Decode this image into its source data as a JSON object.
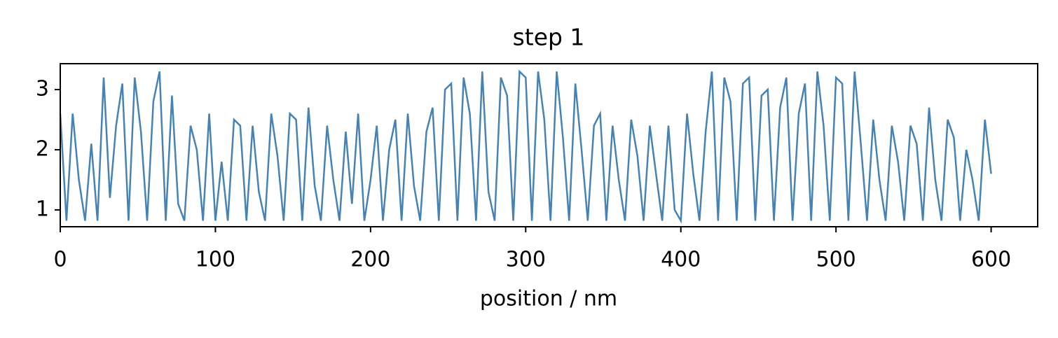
{
  "chart_data": {
    "type": "line",
    "title": "step 1",
    "x_label": "position / nm",
    "x": [
      0,
      4,
      8,
      12,
      16,
      20,
      24,
      28,
      32,
      36,
      40,
      44,
      48,
      52,
      56,
      60,
      64,
      68,
      72,
      76,
      80,
      84,
      88,
      92,
      96,
      100,
      104,
      108,
      112,
      116,
      120,
      124,
      128,
      132,
      136,
      140,
      144,
      148,
      152,
      156,
      160,
      164,
      168,
      172,
      176,
      180,
      184,
      188,
      192,
      196,
      200,
      204,
      208,
      212,
      216,
      220,
      224,
      228,
      232,
      236,
      240,
      244,
      248,
      252,
      256,
      260,
      264,
      268,
      272,
      276,
      280,
      284,
      288,
      292,
      296,
      300,
      304,
      308,
      312,
      316,
      320,
      324,
      328,
      332,
      336,
      340,
      344,
      348,
      352,
      356,
      360,
      364,
      368,
      372,
      376,
      380,
      384,
      388,
      392,
      396,
      400,
      404,
      408,
      412,
      416,
      420,
      424,
      428,
      432,
      436,
      440,
      444,
      448,
      452,
      456,
      460,
      464,
      468,
      472,
      476,
      480,
      484,
      488,
      492,
      496,
      500,
      504,
      508,
      512,
      516,
      520,
      524,
      528,
      532,
      536,
      540,
      544,
      548,
      552,
      556,
      560,
      564,
      568,
      572,
      576,
      580,
      584,
      588,
      592,
      596,
      600
    ],
    "series": [
      {
        "color": "#4682b4",
        "values": [
          2.6,
          0.82,
          2.6,
          1.5,
          0.82,
          2.1,
          0.82,
          3.2,
          1.2,
          2.4,
          3.1,
          0.82,
          3.2,
          2.3,
          0.82,
          2.8,
          3.3,
          0.82,
          2.9,
          1.1,
          0.82,
          2.4,
          2.0,
          0.82,
          2.6,
          0.82,
          1.8,
          0.82,
          2.5,
          2.4,
          0.82,
          2.4,
          1.3,
          0.82,
          2.6,
          1.9,
          0.82,
          2.6,
          2.5,
          0.82,
          2.7,
          1.4,
          0.82,
          2.4,
          1.5,
          0.82,
          2.3,
          1.1,
          2.6,
          0.82,
          1.5,
          2.4,
          0.82,
          2.0,
          2.5,
          0.82,
          2.6,
          1.4,
          0.82,
          2.3,
          2.7,
          0.82,
          3.0,
          3.1,
          0.82,
          3.2,
          2.6,
          0.82,
          3.3,
          1.3,
          0.82,
          3.2,
          2.9,
          0.82,
          3.3,
          3.2,
          0.82,
          3.3,
          2.5,
          0.82,
          3.3,
          2.2,
          0.82,
          3.1,
          2.0,
          0.82,
          2.4,
          2.6,
          0.82,
          2.4,
          1.5,
          0.82,
          2.5,
          1.9,
          0.82,
          2.4,
          1.6,
          0.82,
          2.4,
          1.0,
          0.82,
          2.6,
          1.6,
          0.82,
          2.3,
          3.3,
          0.82,
          3.2,
          2.8,
          0.82,
          3.1,
          3.2,
          0.82,
          2.9,
          3.0,
          0.82,
          2.7,
          3.2,
          0.82,
          2.6,
          3.1,
          0.82,
          3.3,
          2.4,
          0.82,
          3.2,
          3.1,
          0.82,
          3.3,
          2.1,
          0.82,
          2.5,
          1.5,
          0.82,
          2.4,
          1.8,
          0.82,
          2.4,
          2.1,
          0.82,
          2.7,
          1.5,
          0.82,
          2.5,
          2.2,
          0.82,
          2.0,
          1.5,
          0.82,
          2.5,
          1.6
        ]
      }
    ],
    "xlim": [
      0,
      630
    ],
    "ylim": [
      0.72,
      3.43
    ],
    "xticks": [
      0,
      100,
      200,
      300,
      400,
      500,
      600
    ],
    "yticks": [
      1,
      2,
      3
    ]
  }
}
